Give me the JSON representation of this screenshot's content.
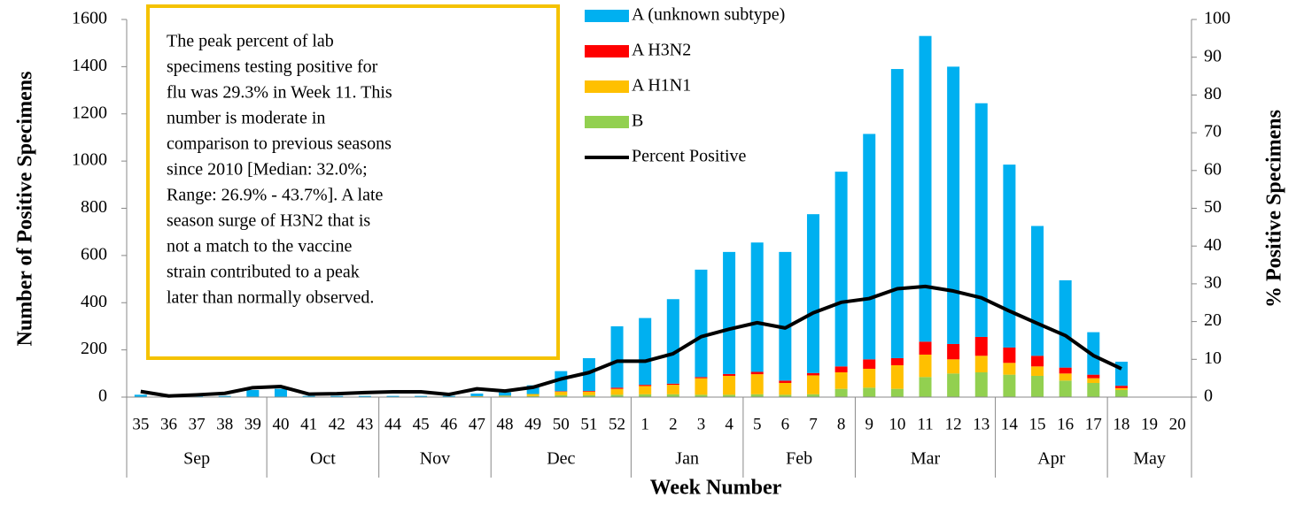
{
  "chart_data": {
    "type": "stacked_bar_line",
    "annotation": [
      "The peak percent of lab",
      "specimens testing positive for",
      "flu was 29.3% in Week 11. This",
      "number is moderate in",
      "comparison to previous seasons",
      "since 2010 [Median: 32.0%;",
      "Range: 26.9% - 43.7%]. A late",
      "season surge of H3N2 that is",
      "not a match to the vaccine",
      "strain contributed to a peak",
      "later than normally observed."
    ],
    "x_label": "Week Number",
    "y_label": "Number of Positive Specimens",
    "y2_label": "% Positive Specimens",
    "categories": [
      "35",
      "36",
      "37",
      "38",
      "39",
      "40",
      "41",
      "42",
      "43",
      "44",
      "45",
      "46",
      "47",
      "48",
      "49",
      "50",
      "51",
      "52",
      "1",
      "2",
      "3",
      "4",
      "5",
      "6",
      "7",
      "8",
      "9",
      "10",
      "11",
      "12",
      "13",
      "14",
      "15",
      "16",
      "17",
      "18",
      "19",
      "20"
    ],
    "x_groups": [
      {
        "label": "Sep",
        "span": 5
      },
      {
        "label": "Oct",
        "span": 4
      },
      {
        "label": "Nov",
        "span": 4
      },
      {
        "label": "Dec",
        "span": 5
      },
      {
        "label": "Jan",
        "span": 4
      },
      {
        "label": "Feb",
        "span": 4
      },
      {
        "label": "Mar",
        "span": 5
      },
      {
        "label": "Apr",
        "span": 4
      },
      {
        "label": "May",
        "span": 3
      }
    ],
    "series": [
      {
        "name": "A (unknown subtype)",
        "color": "#00b0f0",
        "values": [
          10,
          5,
          5,
          5,
          30,
          35,
          5,
          5,
          5,
          5,
          5,
          5,
          11,
          14,
          37,
          85,
          139,
          260,
          283,
          358,
          455,
          517,
          548,
          545,
          673,
          825,
          955,
          1225,
          1295,
          1175,
          990,
          775,
          550,
          370,
          180,
          102,
          0,
          0
        ]
      },
      {
        "name": "A H3N2",
        "color": "#ff0000",
        "values": [
          0,
          0,
          0,
          0,
          0,
          0,
          0,
          0,
          0,
          0,
          0,
          0,
          0,
          0,
          0,
          2,
          3,
          5,
          5,
          5,
          5,
          8,
          10,
          10,
          10,
          25,
          40,
          30,
          55,
          65,
          80,
          65,
          45,
          25,
          15,
          10,
          0,
          0
        ]
      },
      {
        "name": "A H1N1",
        "color": "#ffc000",
        "values": [
          0,
          0,
          0,
          0,
          0,
          0,
          0,
          0,
          0,
          0,
          0,
          0,
          2,
          3,
          8,
          15,
          15,
          25,
          35,
          40,
          70,
          80,
          85,
          50,
          80,
          70,
          80,
          100,
          95,
          60,
          70,
          50,
          40,
          30,
          20,
          8,
          0,
          0
        ]
      },
      {
        "name": "B",
        "color": "#92d050",
        "values": [
          0,
          0,
          0,
          0,
          0,
          0,
          0,
          0,
          0,
          0,
          0,
          0,
          2,
          3,
          5,
          8,
          8,
          10,
          12,
          12,
          10,
          10,
          12,
          10,
          12,
          35,
          40,
          35,
          85,
          100,
          105,
          95,
          90,
          70,
          60,
          30,
          0,
          0
        ]
      },
      {
        "name": "Percent Positive",
        "color": "#000000",
        "axis": "y2",
        "values": [
          1.5,
          0.3,
          0.6,
          1.0,
          2.5,
          2.8,
          0.8,
          0.9,
          1.2,
          1.4,
          1.4,
          0.7,
          2.2,
          1.6,
          2.6,
          4.8,
          6.5,
          9.5,
          9.5,
          11.5,
          16,
          18,
          19.7,
          18.3,
          22.3,
          25.1,
          26.1,
          28.7,
          29.3,
          28.1,
          26.3,
          22.8,
          19.5,
          16.3,
          11,
          7.5,
          null,
          null
        ]
      }
    ],
    "ylim": [
      0,
      1600
    ],
    "yticks": [
      0,
      200,
      400,
      600,
      800,
      1000,
      1200,
      1400,
      1600
    ],
    "y2lim": [
      0,
      100
    ],
    "y2ticks": [
      0,
      10,
      20,
      30,
      40,
      50,
      60,
      70,
      80,
      90,
      100
    ]
  }
}
